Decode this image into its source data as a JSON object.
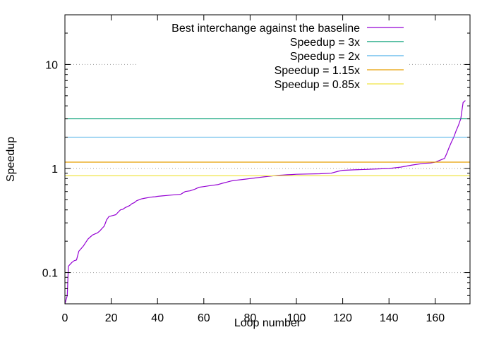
{
  "chart_data": {
    "type": "line",
    "title": "",
    "xlabel": "Loop number",
    "ylabel": "Speedup",
    "xlim": [
      0,
      175
    ],
    "ylim": [
      0.05,
      30
    ],
    "x_scale": "linear",
    "y_scale": "log",
    "x_ticks": [
      0,
      20,
      40,
      60,
      80,
      100,
      120,
      140,
      160
    ],
    "x_tick_labels": [
      "0",
      "20",
      "40",
      "60",
      "80",
      "100",
      "120",
      "140",
      "160"
    ],
    "y_ticks": [
      0.1,
      1,
      10
    ],
    "y_tick_labels": [
      "0.1",
      "1",
      "10"
    ],
    "grid": "horizontal dotted at 0.1, 1, 10",
    "legend_position": "top-right",
    "series": [
      {
        "name": "Best interchange against the baseline",
        "color": "#9400d3",
        "kind": "curve",
        "x": [
          0,
          1,
          1.5,
          3,
          4,
          5,
          6,
          7,
          8,
          9,
          10,
          11,
          12,
          13,
          14,
          15,
          16,
          17,
          18,
          19,
          20,
          21,
          22,
          23,
          24,
          25,
          26,
          27,
          28,
          29,
          30,
          31,
          32,
          33,
          34,
          35,
          36,
          37,
          38,
          39,
          40,
          42,
          44,
          46,
          48,
          50,
          52,
          54,
          56,
          58,
          60,
          62,
          64,
          66,
          68,
          70,
          72,
          74,
          76,
          78,
          80,
          82,
          84,
          86,
          88,
          90,
          92,
          94,
          96,
          98,
          100,
          105,
          110,
          115,
          118,
          120,
          125,
          130,
          135,
          140,
          145,
          150,
          155,
          158,
          160,
          162,
          164,
          165,
          166,
          167,
          168,
          169,
          170,
          171,
          172,
          173
        ],
        "y": [
          0.05,
          0.06,
          0.115,
          0.125,
          0.13,
          0.132,
          0.16,
          0.17,
          0.18,
          0.195,
          0.21,
          0.22,
          0.23,
          0.235,
          0.24,
          0.25,
          0.265,
          0.28,
          0.32,
          0.345,
          0.35,
          0.355,
          0.36,
          0.38,
          0.4,
          0.405,
          0.42,
          0.43,
          0.44,
          0.46,
          0.47,
          0.49,
          0.5,
          0.51,
          0.515,
          0.52,
          0.525,
          0.53,
          0.532,
          0.535,
          0.54,
          0.545,
          0.55,
          0.555,
          0.56,
          0.565,
          0.6,
          0.61,
          0.63,
          0.66,
          0.67,
          0.68,
          0.69,
          0.7,
          0.72,
          0.74,
          0.76,
          0.77,
          0.78,
          0.79,
          0.8,
          0.81,
          0.82,
          0.83,
          0.84,
          0.85,
          0.86,
          0.865,
          0.87,
          0.875,
          0.88,
          0.885,
          0.89,
          0.9,
          0.94,
          0.96,
          0.97,
          0.98,
          0.99,
          1.0,
          1.03,
          1.08,
          1.12,
          1.13,
          1.15,
          1.2,
          1.25,
          1.4,
          1.6,
          1.8,
          2.0,
          2.3,
          2.6,
          3.0,
          4.3,
          4.5
        ]
      },
      {
        "name": "Speedup = 3x",
        "color": "#009e73",
        "kind": "hline",
        "y": 3
      },
      {
        "name": "Speedup = 2x",
        "color": "#56b4e9",
        "kind": "hline",
        "y": 2
      },
      {
        "name": "Speedup = 1.15x",
        "color": "#e69f00",
        "kind": "hline",
        "y": 1.15
      },
      {
        "name": "Speedup = 0.85x",
        "color": "#f0e442",
        "kind": "hline",
        "y": 0.85
      }
    ]
  }
}
